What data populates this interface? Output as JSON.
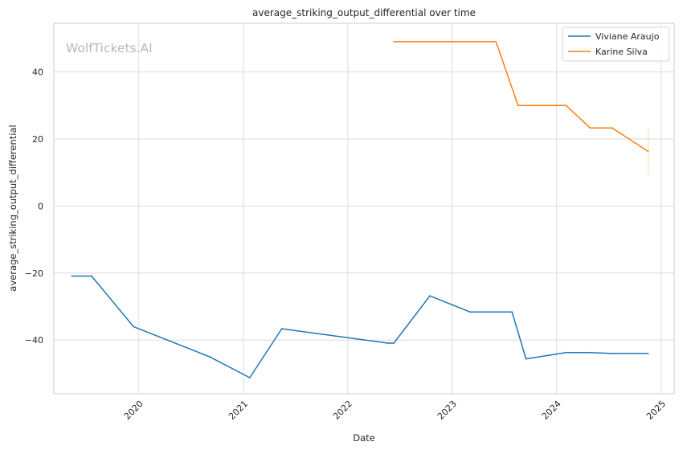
{
  "chart_data": {
    "type": "line",
    "title": "average_striking_output_differential over time",
    "xlabel": "Date",
    "ylabel": "average_striking_output_differential",
    "watermark": "WolfTickets.AI",
    "x_ticks": [
      "2020",
      "2021",
      "2022",
      "2023",
      "2024",
      "2025"
    ],
    "y_ticks": [
      "−40",
      "−20",
      "0",
      "20",
      "40"
    ],
    "y_tick_values": [
      -40,
      -20,
      0,
      20,
      40
    ],
    "xlim": [
      "2019-03-10",
      "2025-02-15"
    ],
    "ylim": [
      -56,
      54.5
    ],
    "grid": true,
    "legend_position": "top-right",
    "series": [
      {
        "name": "Viviane Araujo",
        "color": "#1f77b4",
        "points": [
          {
            "date": "2019-05-12",
            "value": -20.9
          },
          {
            "date": "2019-07-20",
            "value": -20.9
          },
          {
            "date": "2019-12-14",
            "value": -36.0
          },
          {
            "date": "2020-09-05",
            "value": -45.0
          },
          {
            "date": "2021-01-23",
            "value": -51.2
          },
          {
            "date": "2021-05-15",
            "value": -36.6
          },
          {
            "date": "2022-05-21",
            "value": -40.9
          },
          {
            "date": "2022-06-11",
            "value": -40.9
          },
          {
            "date": "2022-10-15",
            "value": -26.8
          },
          {
            "date": "2023-03-04",
            "value": -31.6
          },
          {
            "date": "2023-07-29",
            "value": -31.6
          },
          {
            "date": "2023-09-16",
            "value": -45.6
          },
          {
            "date": "2024-02-03",
            "value": -43.7
          },
          {
            "date": "2024-04-27",
            "value": -43.7
          },
          {
            "date": "2024-07-13",
            "value": -44.0
          },
          {
            "date": "2024-11-16",
            "value": -44.0
          }
        ]
      },
      {
        "name": "Karine Silva",
        "color": "#ff7f0e",
        "points": [
          {
            "date": "2022-06-11",
            "value": 49.0
          },
          {
            "date": "2023-06-03",
            "value": 49.0
          },
          {
            "date": "2023-08-19",
            "value": 30.0
          },
          {
            "date": "2024-02-03",
            "value": 30.0
          },
          {
            "date": "2024-04-27",
            "value": 23.3
          },
          {
            "date": "2024-07-13",
            "value": 23.3
          },
          {
            "date": "2024-11-16",
            "value": 16.3
          }
        ],
        "error_band": {
          "date": "2024-11-16",
          "low": 9.3,
          "high": 23.3
        }
      }
    ]
  }
}
